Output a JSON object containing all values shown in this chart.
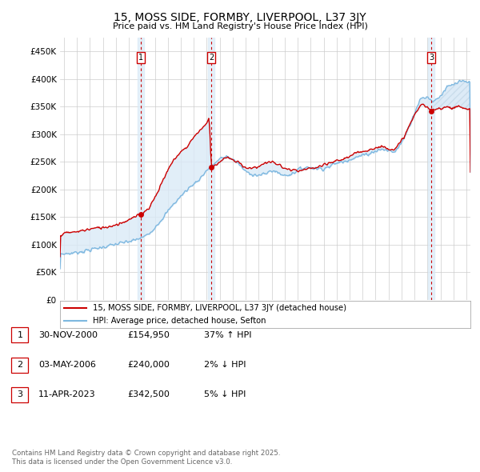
{
  "title": "15, MOSS SIDE, FORMBY, LIVERPOOL, L37 3JY",
  "subtitle": "Price paid vs. HM Land Registry's House Price Index (HPI)",
  "ytick_values": [
    0,
    50000,
    100000,
    150000,
    200000,
    250000,
    300000,
    350000,
    400000,
    450000
  ],
  "xlim_start": 1994.7,
  "xlim_end": 2026.3,
  "ylim": [
    0,
    475000
  ],
  "sale_dates": [
    2000.92,
    2006.34,
    2023.28
  ],
  "sale_prices": [
    154950,
    240000,
    342500
  ],
  "sale_labels": [
    "1",
    "2",
    "3"
  ],
  "annotation_rows": [
    {
      "label": "1",
      "date": "30-NOV-2000",
      "price": "£154,950",
      "vs_hpi": "37% ↑ HPI"
    },
    {
      "label": "2",
      "date": "03-MAY-2006",
      "price": "£240,000",
      "vs_hpi": "2% ↓ HPI"
    },
    {
      "label": "3",
      "date": "11-APR-2023",
      "price": "£342,500",
      "vs_hpi": "5% ↓ HPI"
    }
  ],
  "legend_line1": "15, MOSS SIDE, FORMBY, LIVERPOOL, L37 3JY (detached house)",
  "legend_line2": "HPI: Average price, detached house, Sefton",
  "footer": "Contains HM Land Registry data © Crown copyright and database right 2025.\nThis data is licensed under the Open Government Licence v3.0.",
  "sale_color": "#cc0000",
  "hpi_color": "#7eb8e0",
  "shade_color": "#daeaf7",
  "grid_color": "#cccccc",
  "bg_color": "#f0f4fa"
}
